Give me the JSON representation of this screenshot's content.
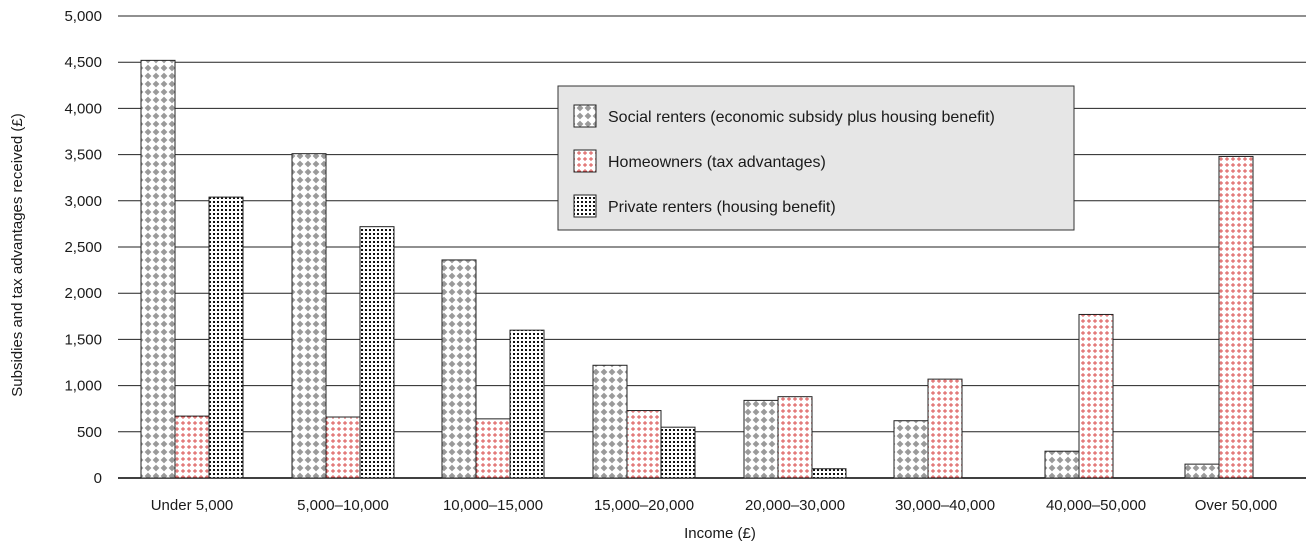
{
  "chart_data": {
    "type": "bar",
    "title": "",
    "xlabel": "Income (£)",
    "ylabel": "Subsidies and tax advantages received (£)",
    "ylim": [
      0,
      5000
    ],
    "yticks": [
      "0",
      "500",
      "1,000",
      "1,500",
      "2,000",
      "2,500",
      "3,000",
      "3,500",
      "4,000",
      "4,500",
      "5,000"
    ],
    "categories": [
      "Under 5,000",
      "5,000–10,000",
      "10,000–15,000",
      "15,000–20,000",
      "20,000–30,000",
      "30,000–40,000",
      "40,000–50,000",
      "Over 50,000"
    ],
    "series": [
      {
        "name": "Social renters (economic subsidy plus housing benefit)",
        "pattern": "diamond-grey",
        "values": [
          4520,
          3510,
          2360,
          1220,
          840,
          620,
          290,
          150
        ]
      },
      {
        "name": "Homeowners (tax advantages)",
        "pattern": "red-cross",
        "values": [
          670,
          660,
          640,
          730,
          880,
          1070,
          1770,
          3480
        ]
      },
      {
        "name": "Private renters (housing benefit)",
        "pattern": "black-dots",
        "values": [
          3040,
          2720,
          1600,
          550,
          100,
          0,
          0,
          0
        ]
      }
    ],
    "grid": true,
    "legend": "top-center"
  }
}
